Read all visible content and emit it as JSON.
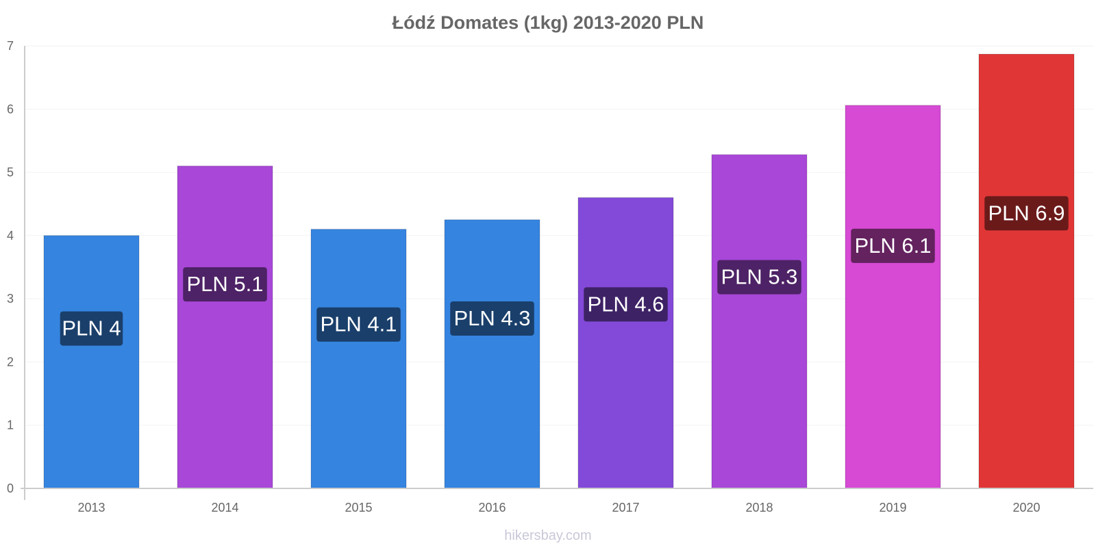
{
  "chart_data": {
    "type": "bar",
    "title": "Łódź Domates (1kg) 2013-2020 PLN",
    "xlabel": "",
    "ylabel": "",
    "ylim": [
      0,
      7
    ],
    "yticks": [
      "0",
      "1",
      "2",
      "3",
      "4",
      "5",
      "6",
      "7"
    ],
    "categories": [
      "2013",
      "2014",
      "2015",
      "2016",
      "2017",
      "2018",
      "2019",
      "2020"
    ],
    "values": [
      4.0,
      5.1,
      4.1,
      4.25,
      4.6,
      5.28,
      6.06,
      6.87
    ],
    "labels": [
      "PLN 4",
      "PLN 5.1",
      "PLN 4.1",
      "PLN 4.3",
      "PLN 4.6",
      "PLN 5.3",
      "PLN 6.1",
      "PLN 6.9"
    ],
    "bar_colors": [
      "#3584e0",
      "#a847d8",
      "#3584e0",
      "#3584e0",
      "#8349d8",
      "#a847d8",
      "#d64ad4",
      "#e13636"
    ],
    "label_bg_colors": [
      "#1a3f6b",
      "#4e2266",
      "#1a3f6b",
      "#1a3f6b",
      "#3e2266",
      "#4e2266",
      "#64225f",
      "#6b1a1a"
    ],
    "grid": true
  },
  "footer": {
    "credit": "hikersbay.com"
  }
}
